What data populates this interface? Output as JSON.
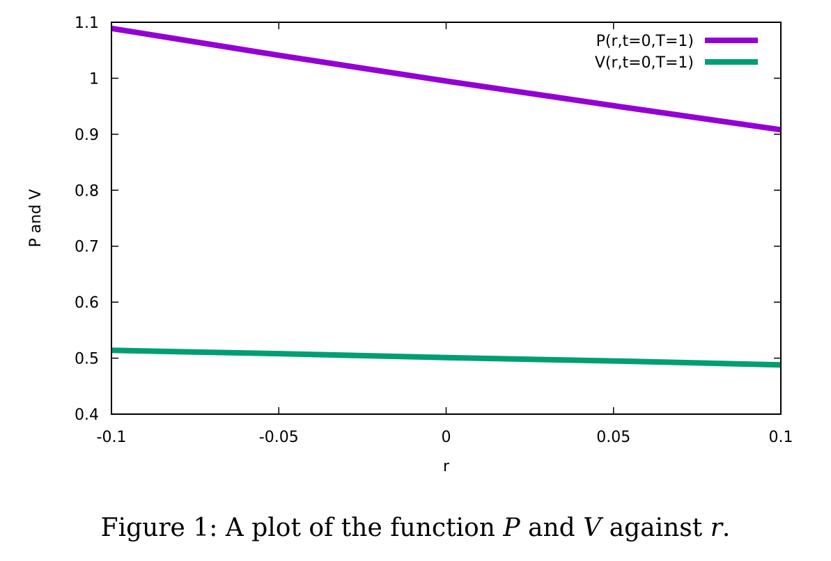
{
  "chart_data": {
    "type": "line",
    "xlabel": "r",
    "ylabel": "P and V",
    "xlim": [
      -0.1,
      0.1
    ],
    "ylim": [
      0.4,
      1.1
    ],
    "x_ticks": [
      "-0.1",
      "-0.05",
      "0",
      "0.05",
      "0.1"
    ],
    "y_ticks": [
      "0.4",
      "0.5",
      "0.6",
      "0.7",
      "0.8",
      "0.9",
      "1",
      "1.1"
    ],
    "grid": false,
    "legend_position": "top-right",
    "series": [
      {
        "name": "P(r,t=0,T=1)",
        "color": "#9400d3",
        "x": [
          -0.1,
          -0.05,
          0,
          0.05,
          0.1
        ],
        "y": [
          1.089,
          1.041,
          0.995,
          0.951,
          0.908
        ]
      },
      {
        "name": "V(r,t=0,T=1)",
        "color": "#009e73",
        "x": [
          -0.1,
          -0.05,
          0,
          0.05,
          0.1
        ],
        "y": [
          0.514,
          0.508,
          0.501,
          0.495,
          0.488
        ]
      }
    ]
  },
  "caption": {
    "prefix": "Figure 1: A plot of the function ",
    "var1": "P",
    "mid": " and ",
    "var2": "V",
    "suffix": " against ",
    "var3": "r",
    "end": "."
  }
}
